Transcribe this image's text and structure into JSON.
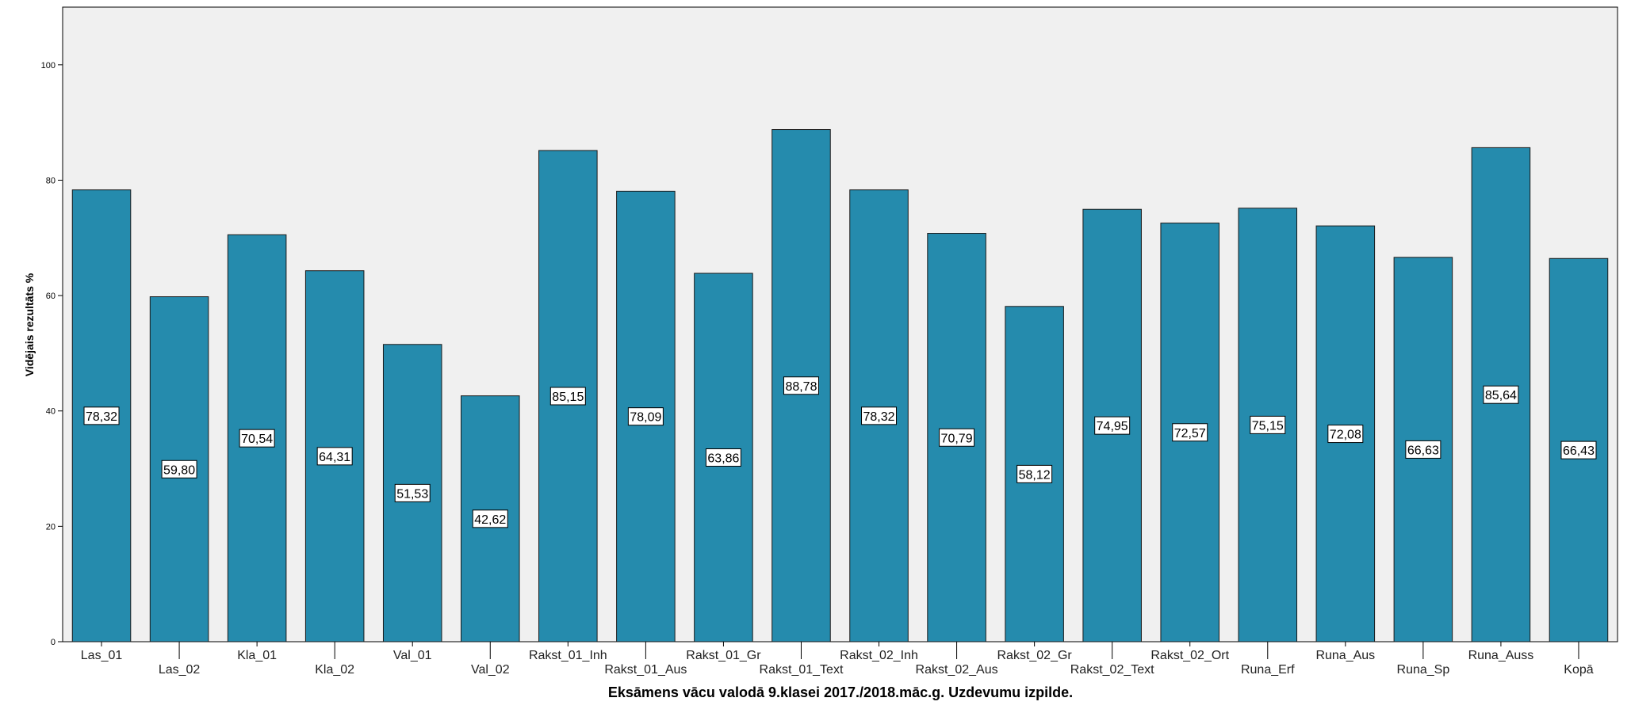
{
  "chart_data": {
    "type": "bar",
    "title": "",
    "xlabel": "Eksāmens vācu valodā 9.klasei 2017./2018.māc.g. Uzdevumu izpilde.",
    "ylabel": "Vidējais rezultāts %",
    "ylim": [
      0,
      110
    ],
    "yticks": [
      0,
      20,
      40,
      60,
      80,
      100
    ],
    "grid": false,
    "bar_color": "#258BAD",
    "plot_background": "#F0F0F0",
    "categories": [
      "Las_01",
      "Las_02",
      "Kla_01",
      "Kla_02",
      "Val_01",
      "Val_02",
      "Rakst_01_Inh",
      "Rakst_01_Aus",
      "Rakst_01_Gr",
      "Rakst_01_Text",
      "Rakst_02_Inh",
      "Rakst_02_Aus",
      "Rakst_02_Gr",
      "Rakst_02_Text",
      "Rakst_02_Ort",
      "Runa_Erf",
      "Runa_Aus",
      "Runa_Sp",
      "Runa_Auss",
      "Kopā"
    ],
    "values": [
      78.32,
      59.8,
      70.54,
      64.31,
      51.53,
      42.62,
      85.15,
      78.09,
      63.86,
      88.78,
      78.32,
      70.79,
      58.12,
      74.95,
      72.57,
      75.15,
      72.08,
      66.63,
      85.64,
      66.43
    ],
    "value_labels": [
      "78,32",
      "59,80",
      "70,54",
      "64,31",
      "51,53",
      "42,62",
      "85,15",
      "78,09",
      "63,86",
      "88,78",
      "78,32",
      "70,79",
      "58,12",
      "74,95",
      "72,57",
      "75,15",
      "72,08",
      "66,63",
      "85,64",
      "66,43"
    ]
  }
}
